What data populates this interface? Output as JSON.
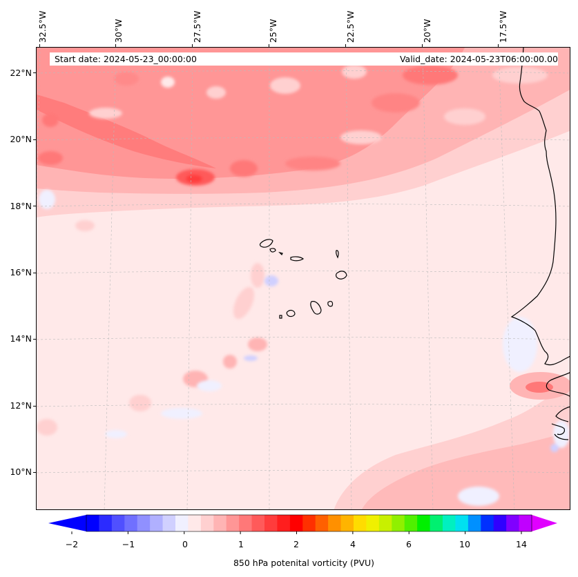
{
  "map": {
    "start_label": "Start date: 2024-05-23_00:00:00",
    "valid_label": "Valid_date: 2024-05-23T06:00:00.00",
    "lon_labels": [
      "32.5°W",
      "30°W",
      "27.5°W",
      "25°W",
      "22.5°W",
      "20°W",
      "17.5°W"
    ],
    "lat_labels": [
      "22°N",
      "20°N",
      "18°N",
      "16°N",
      "14°N",
      "12°N",
      "10°N"
    ],
    "coastline_color": "#000000",
    "gridline_color": "#bbbbbb"
  },
  "colorbar": {
    "label": "850 hPa potenital vorticity (PVU)",
    "tick_labels": [
      "−2",
      "−1",
      "0",
      "1",
      "2",
      "4",
      "6",
      "10",
      "14"
    ],
    "colors": [
      "#0000ff",
      "#2b2bff",
      "#5050ff",
      "#7070ff",
      "#9090ff",
      "#b0b0ff",
      "#d0d0ff",
      "#f0f0ff",
      "#ffe9e9",
      "#ffd0d0",
      "#ffb4b4",
      "#ff9696",
      "#ff7878",
      "#ff5a5a",
      "#ff3c3c",
      "#ff1e1e",
      "#ff0000",
      "#ff3000",
      "#ff6000",
      "#ff9000",
      "#ffb400",
      "#ffdc00",
      "#f0f000",
      "#c8f000",
      "#90f000",
      "#50f000",
      "#00f000",
      "#00f070",
      "#00f0c0",
      "#00e0f0",
      "#0090ff",
      "#0030ff",
      "#3000ff",
      "#8000ff",
      "#c000ff"
    ],
    "extend_min_color": "#0000ff",
    "extend_max_color": "#e000ff"
  }
}
